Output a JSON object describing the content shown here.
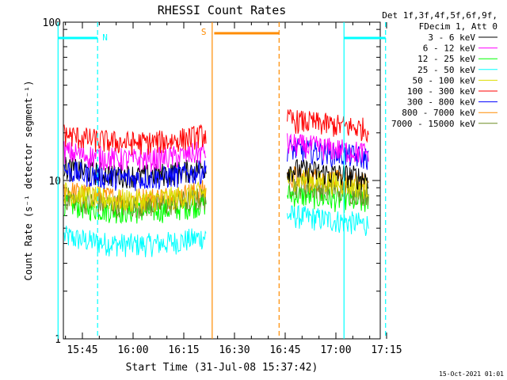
{
  "chart_data": {
    "type": "line",
    "title": "RHESSI Count Rates",
    "xlabel": "Start Time (31-Jul-08 15:37:42)",
    "ylabel": "Count Rate (s⁻¹ detector segment⁻¹)",
    "yscale": "log",
    "ylim": [
      1,
      100
    ],
    "xlim_minutes": [
      15.63,
      17.28
    ],
    "x_ticks": [
      "15:45",
      "16:00",
      "16:15",
      "16:30",
      "16:45",
      "17:00",
      "17:15"
    ],
    "y_ticks": [
      "1",
      "10",
      "100"
    ],
    "legend_header": [
      "Det 1f,3f,4f,5f,6f,9f,",
      "FDecim 1, Att 0"
    ],
    "legend_position": "top-right",
    "footer_date": "15-Oct-2021 01:01",
    "series": [
      {
        "name": "3 - 6 keV",
        "color": "#000000",
        "seg1": 11.5,
        "seg2": 10.8
      },
      {
        "name": "6 - 12 keV",
        "color": "#ff00ff",
        "seg1": 14.5,
        "seg2": 15.5
      },
      {
        "name": "12 - 25 keV",
        "color": "#00ff00",
        "seg1": 6.8,
        "seg2": 7.5
      },
      {
        "name": "25 - 50 keV",
        "color": "#00ffff",
        "seg1": 4.2,
        "seg2": 5.5
      },
      {
        "name": "50 - 100 keV",
        "color": "#dddd00",
        "seg1": 8.0,
        "seg2": 9.5
      },
      {
        "name": "100 - 300 keV",
        "color": "#ff0000",
        "seg1": 18.5,
        "seg2": 22.0
      },
      {
        "name": "300 - 800 keV",
        "color": "#0000ff",
        "seg1": 11.0,
        "seg2": 14.5
      },
      {
        "name": "800 - 7000 keV",
        "color": "#ff8c00",
        "seg1": 8.2,
        "seg2": 9.8
      },
      {
        "name": "7000 - 15000 keV",
        "color": "#6b8e23",
        "seg1": 7.4,
        "seg2": 8.6
      }
    ],
    "data_segments_minutes": [
      [
        15.63,
        16.36
      ],
      [
        16.76,
        17.28
      ]
    ],
    "markers": [
      {
        "label": "N",
        "color": "#00ffff",
        "bar_start": 15.63,
        "bar_end": 15.825,
        "solid_at": 15.63,
        "dashed_at": 15.825
      },
      {
        "label": "S",
        "color": "#ff8c00",
        "bar_start": 16.4,
        "bar_end": 16.72,
        "solid_at": 16.39,
        "dashed_at": 16.72
      },
      {
        "label": "",
        "color": "#00ffff",
        "bar_start": 17.04,
        "bar_end": 17.245,
        "solid_at": 17.04,
        "dashed_at": 17.245
      }
    ]
  }
}
